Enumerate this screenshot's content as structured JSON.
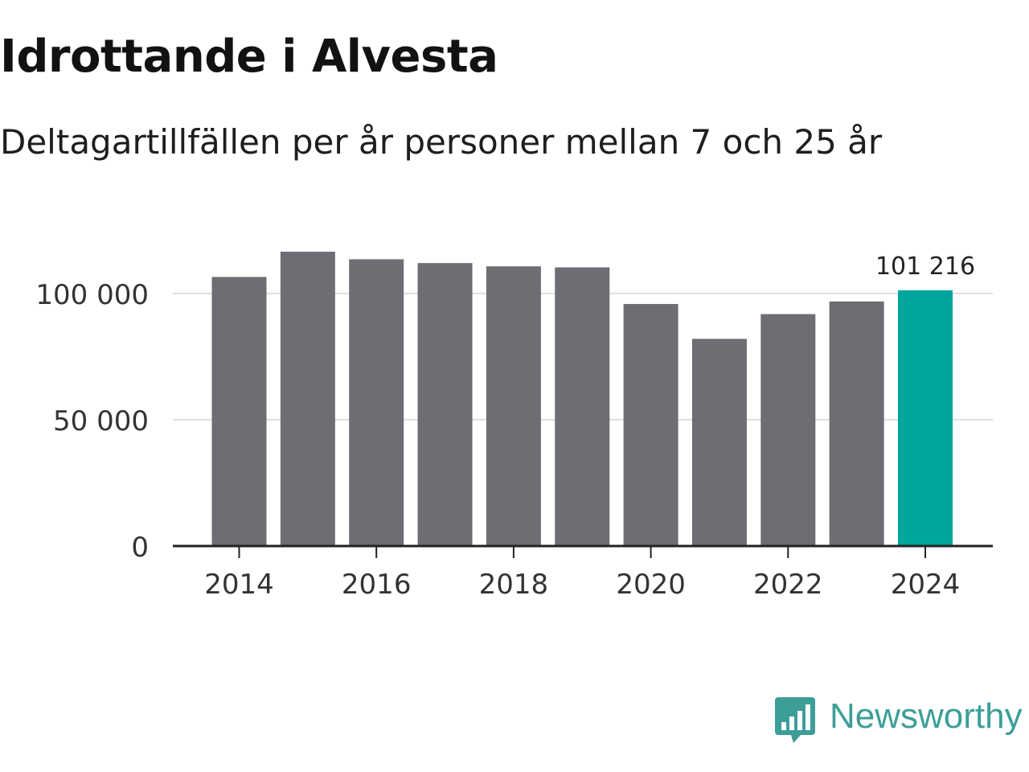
{
  "header": {
    "title": "Idrottande i Alvesta",
    "subtitle": "Deltagartillfällen per år personer mellan 7 och 25 år"
  },
  "brand": {
    "name": "Newsworthy",
    "icon": "newsworthy-bar-chart-icon",
    "color": "#3d9e98"
  },
  "colors": {
    "bar": "#6e6d73",
    "highlight": "#00a59b",
    "grid": "#dddddd",
    "axis": "#222222"
  },
  "chart_data": {
    "type": "bar",
    "title": "Idrottande i Alvesta",
    "subtitle": "Deltagartillfällen per år personer mellan 7 och 25 år",
    "categories": [
      "2014",
      "2015",
      "2016",
      "2017",
      "2018",
      "2019",
      "2020",
      "2021",
      "2022",
      "2023",
      "2024"
    ],
    "values": [
      106500,
      116500,
      113500,
      112000,
      110700,
      110300,
      95800,
      82000,
      91800,
      96800,
      101216
    ],
    "highlight_index": 10,
    "data_labels": [
      {
        "index": 10,
        "text": "101 216"
      }
    ],
    "x_tick_labels": [
      "2014",
      "2016",
      "2018",
      "2020",
      "2022",
      "2024"
    ],
    "y_ticks": [
      0,
      50000,
      100000
    ],
    "y_tick_labels": [
      "0",
      "50 000",
      "100 000"
    ],
    "ylim": [
      0,
      120000
    ],
    "xlabel": "",
    "ylabel": "",
    "grid": true
  }
}
